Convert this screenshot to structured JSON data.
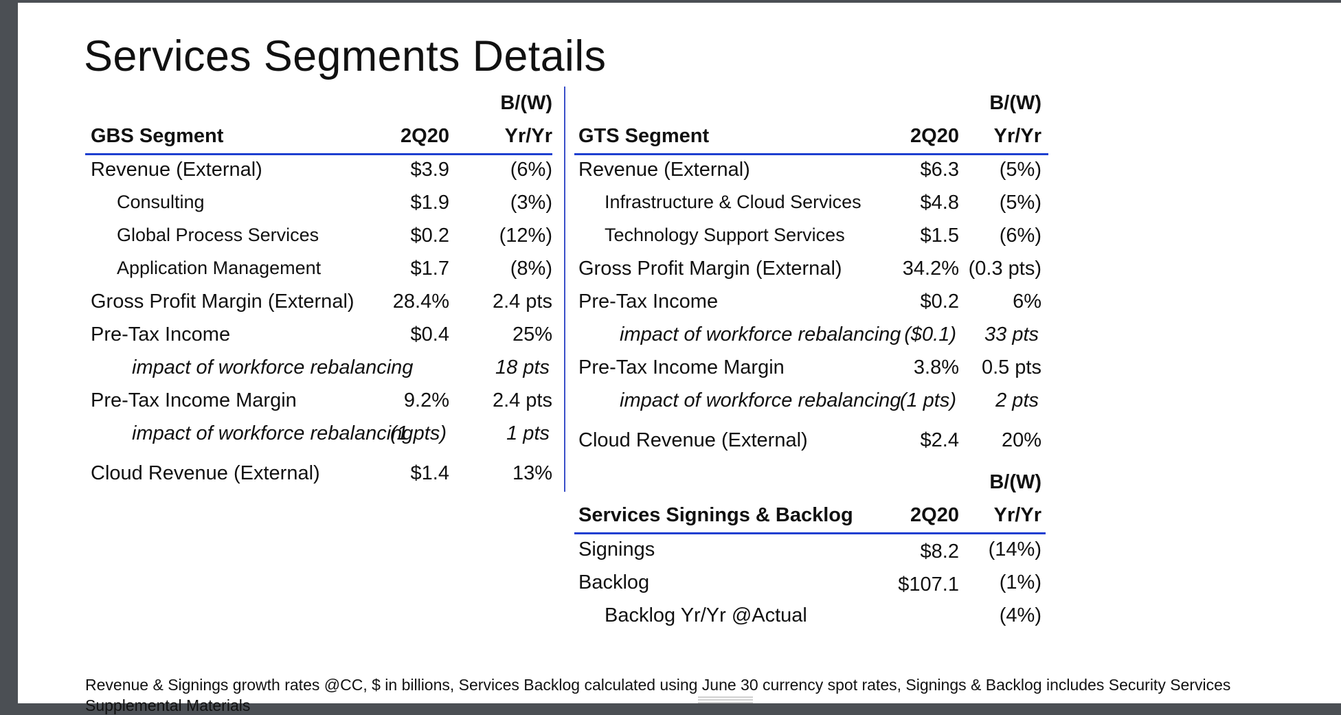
{
  "title": "Services Segments Details",
  "gbs": {
    "bw_label": "B/(W)",
    "segment_label": "GBS Segment",
    "period_label": "2Q20",
    "yoy_label": "Yr/Yr",
    "rows": [
      {
        "label": "Revenue (External)",
        "value": "$3.9",
        "change": "(6%)"
      },
      {
        "label": "Consulting",
        "value": "$1.9",
        "change": "(3%)"
      },
      {
        "label": "Global Process Services",
        "value": "$0.2",
        "change": "(12%)"
      },
      {
        "label": "Application Management",
        "value": "$1.7",
        "change": "(8%)"
      },
      {
        "label": "Gross Profit Margin (External)",
        "value": "28.4%",
        "change": "2.4 pts"
      },
      {
        "label": "Pre-Tax Income",
        "value": "$0.4",
        "change": "25%"
      },
      {
        "label": "impact of workforce rebalancing",
        "value": "",
        "change": "18 pts"
      },
      {
        "label": "Pre-Tax Income Margin",
        "value": "9.2%",
        "change": "2.4 pts"
      },
      {
        "label": "impact of workforce rebalancing",
        "value": "(1 pts)",
        "change": "1 pts"
      },
      {
        "label": "Cloud Revenue (External)",
        "value": "$1.4",
        "change": "13%"
      }
    ]
  },
  "gts": {
    "bw_label": "B/(W)",
    "segment_label": "GTS Segment",
    "period_label": "2Q20",
    "yoy_label": "Yr/Yr",
    "rows": [
      {
        "label": "Revenue (External)",
        "value": "$6.3",
        "change": "(5%)"
      },
      {
        "label": "Infrastructure & Cloud Services",
        "value": "$4.8",
        "change": "(5%)"
      },
      {
        "label": "Technology Support Services",
        "value": "$1.5",
        "change": "(6%)"
      },
      {
        "label": "Gross Profit Margin (External)",
        "value": "34.2%",
        "change": "(0.3 pts)"
      },
      {
        "label": "Pre-Tax Income",
        "value": "$0.2",
        "change": "6%"
      },
      {
        "label": "impact of workforce rebalancing",
        "value": "($0.1)",
        "change": "33 pts"
      },
      {
        "label": "Pre-Tax Income Margin",
        "value": "3.8%",
        "change": "0.5 pts"
      },
      {
        "label": "impact of workforce rebalancing",
        "value": "(1 pts)",
        "change": "2 pts"
      },
      {
        "label": "Cloud Revenue (External)",
        "value": "$2.4",
        "change": "20%"
      }
    ]
  },
  "signings": {
    "bw_label": "B/(W)",
    "segment_label": "Services Signings & Backlog",
    "period_label": "2Q20",
    "yoy_label": "Yr/Yr",
    "rows": [
      {
        "label": "Signings",
        "value": "$8.2",
        "change": "(14%)"
      },
      {
        "label": "Backlog",
        "value": "$107.1",
        "change": "(1%)"
      },
      {
        "label": "Backlog Yr/Yr @Actual",
        "value": "",
        "change": "(4%)"
      }
    ]
  },
  "footnote": "Revenue & Signings growth rates @CC, $ in billions, Services Backlog calculated using June 30 currency spot rates, Signings & Backlog includes Security Services",
  "footnote_cont": "Supplemental Materials"
}
